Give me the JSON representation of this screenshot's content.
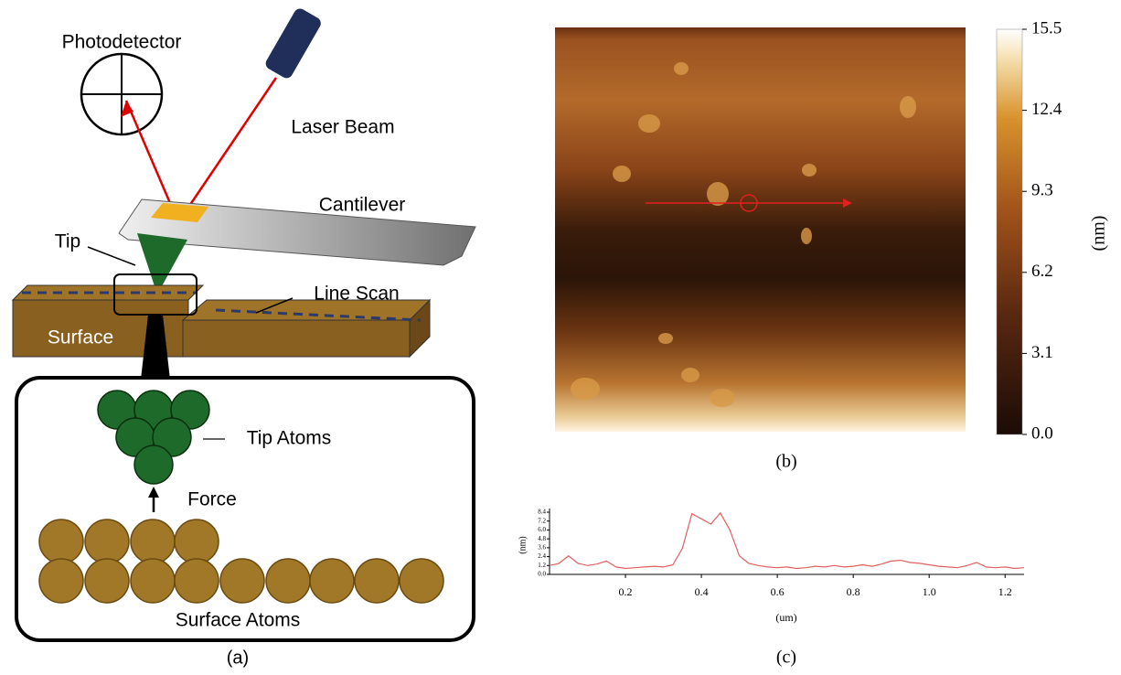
{
  "diagram": {
    "photodetector": "Photodetector",
    "laser_beam": "Laser Beam",
    "cantilever": "Cantilever",
    "tip": "Tip",
    "line_scan": "Line Scan",
    "surface": "Surface",
    "tip_atoms": "Tip Atoms",
    "force": "Force",
    "surface_atoms": "Surface Atoms",
    "panel_label": "(a)"
  },
  "chart_data": [
    {
      "type": "heatmap",
      "panel_label": "(b)",
      "colorbar_label": "(nm)",
      "zlim": [
        0,
        15.5
      ],
      "zticks": [
        {
          "value": 0,
          "label": "0.0"
        },
        3.1,
        6.2,
        9.3,
        12.4,
        15.5
      ]
    },
    {
      "type": "line",
      "panel_label": "(c)",
      "x_label": "(um)",
      "y_label": "(nm)",
      "x": [
        0,
        0.025,
        0.05,
        0.075,
        0.1,
        0.125,
        0.15,
        0.175,
        0.2,
        0.225,
        0.25,
        0.275,
        0.3,
        0.325,
        0.35,
        0.375,
        0.4,
        0.425,
        0.45,
        0.475,
        0.5,
        0.525,
        0.55,
        0.575,
        0.6,
        0.625,
        0.65,
        0.675,
        0.7,
        0.725,
        0.75,
        0.775,
        0.8,
        0.825,
        0.85,
        0.875,
        0.9,
        0.925,
        0.95,
        0.975,
        1.0,
        1.025,
        1.05,
        1.075,
        1.1,
        1.125,
        1.15,
        1.175,
        1.2,
        1.225,
        1.25
      ],
      "values": [
        1.2,
        1.5,
        2.5,
        1.5,
        1.2,
        1.4,
        1.8,
        1.0,
        0.8,
        0.9,
        1.0,
        1.1,
        1.0,
        1.3,
        3.5,
        8.2,
        7.5,
        6.8,
        8.3,
        6.0,
        2.5,
        1.5,
        1.2,
        1.0,
        0.9,
        1.0,
        0.8,
        0.9,
        1.1,
        1.0,
        1.2,
        1.0,
        1.1,
        1.3,
        1.1,
        1.4,
        1.8,
        1.9,
        1.6,
        1.5,
        1.3,
        1.1,
        1.0,
        0.9,
        1.2,
        1.6,
        1.0,
        0.9,
        1.0,
        0.8,
        0.9
      ],
      "color": "#e06060",
      "xlim": [
        0,
        1.25
      ],
      "xticks": [
        0.2,
        0.4,
        0.6,
        0.8,
        {
          "value": 1,
          "label": "1.0"
        },
        1.2
      ],
      "ylim": [
        0,
        8.4
      ],
      "yticks": [
        {
          "value": 0,
          "label": "0.0"
        },
        1.2,
        2.4,
        3.6,
        4.8,
        {
          "value": 6,
          "label": "6.0"
        },
        7.2,
        8.4
      ]
    }
  ]
}
